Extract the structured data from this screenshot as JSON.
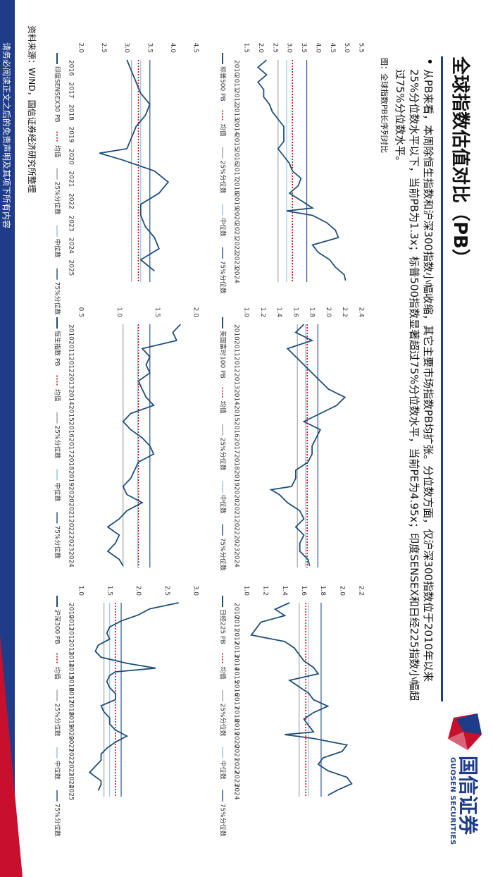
{
  "header": {
    "title": "全球指数估值对比（PB）",
    "bullet": "从PB来看，本周除恒生指数和沪深300指数小幅收缩，其它主要市场指数PB均扩张。分位数方面，仅沪深300指数位于2010年以来25%分位数水平以下，当前PB为1.3x；标普500指数显著超过75%分位数水平，当前PE为4.95x；印度SENSEX和日经225指数小幅超过75%分位数水平。",
    "caption": "图：全球指数PB长序列对比"
  },
  "logo": {
    "cn": "国信证券",
    "en": "GUOSEN SECURITIES"
  },
  "source": "资料来源：WIND，国信证券经济研究所整理",
  "footer": "请务必阅读正文之后的免责声明及其项下所有内容",
  "chart_data": [
    {
      "type": "line",
      "x": [
        2010,
        2010.5,
        2011,
        2011.5,
        2012,
        2012.5,
        2013,
        2013.5,
        2014,
        2014.5,
        2015,
        2015.5,
        2016,
        2016.5,
        2017,
        2017.5,
        2018,
        2018.5,
        2019,
        2019.5,
        2020,
        2020.2,
        2020.5,
        2021,
        2021.5,
        2022,
        2022.5,
        2023,
        2023.5,
        2024,
        2024.5,
        2024.9
      ],
      "series": [
        {
          "name": "标普500 PB",
          "color": "#1f4e79",
          "values": [
            2.2,
            1.9,
            2.2,
            1.9,
            2.1,
            2.1,
            2.3,
            2.4,
            2.6,
            2.8,
            2.8,
            2.8,
            2.6,
            2.8,
            3.0,
            3.1,
            3.4,
            3.3,
            3.0,
            3.4,
            3.8,
            2.9,
            3.8,
            4.3,
            4.6,
            4.7,
            3.8,
            4.0,
            4.4,
            4.6,
            4.9,
            4.95
          ]
        }
      ],
      "reference_lines": [
        {
          "name": "均值",
          "value": 3.1,
          "color": "#c00000",
          "dash": "2,2"
        },
        {
          "name": "25%分位数",
          "value": 2.6,
          "color": "#a6a6a6",
          "dash": ""
        },
        {
          "name": "中位数",
          "value": 2.9,
          "color": "#9dc3e6",
          "dash": ""
        },
        {
          "name": "75%分位数",
          "value": 3.6,
          "color": "#2f5597",
          "dash": ""
        }
      ],
      "xlim": [
        2010,
        2025
      ],
      "xticks": [
        2010,
        2011,
        2012,
        2013,
        2014,
        2015,
        2016,
        2017,
        2018,
        2019,
        2020,
        2021,
        2022,
        2023,
        2024
      ],
      "ylim": [
        1.5,
        5.5
      ],
      "yticks": [
        1.5,
        {
          "value": 2,
          "label": "2.0"
        },
        2.5,
        {
          "value": 3,
          "label": "3.0"
        },
        3.5,
        {
          "value": 4,
          "label": "4.0"
        },
        4.5,
        {
          "value": 5,
          "label": "5.0"
        },
        5.5
      ]
    },
    {
      "type": "line",
      "x": [
        2010,
        2010.5,
        2011,
        2011.5,
        2012,
        2012.5,
        2013,
        2013.5,
        2014,
        2014.5,
        2015,
        2015.5,
        2016,
        2016.5,
        2017,
        2017.5,
        2018,
        2018.5,
        2019,
        2019.5,
        2020,
        2020.2,
        2020.5,
        2021,
        2021.5,
        2022,
        2022.5,
        2023,
        2023.5,
        2024,
        2024.5,
        2024.9
      ],
      "series": [
        {
          "name": "英国富时100 PB",
          "color": "#1f4e79",
          "values": [
            1.7,
            1.6,
            1.8,
            1.5,
            1.6,
            1.7,
            1.8,
            1.9,
            2.0,
            2.2,
            2.1,
            1.9,
            1.7,
            1.9,
            1.85,
            1.8,
            1.8,
            1.75,
            1.6,
            1.6,
            1.55,
            1.3,
            1.4,
            1.5,
            1.65,
            1.7,
            1.6,
            1.7,
            1.65,
            1.65,
            1.75,
            1.77
          ]
        }
      ],
      "reference_lines": [
        {
          "name": "均值",
          "value": 1.74,
          "color": "#c00000",
          "dash": "2,2"
        },
        {
          "name": "25%分位数",
          "value": 1.62,
          "color": "#a6a6a6",
          "dash": ""
        },
        {
          "name": "中位数",
          "value": 1.72,
          "color": "#9dc3e6",
          "dash": ""
        },
        {
          "name": "75%分位数",
          "value": 1.87,
          "color": "#2f5597",
          "dash": ""
        }
      ],
      "xlim": [
        2010,
        2025
      ],
      "xticks": [
        2010,
        2011,
        2012,
        2013,
        2014,
        2015,
        2016,
        2017,
        2018,
        2019,
        2020,
        2021,
        2022,
        2023,
        2024
      ],
      "ylim": [
        1.0,
        2.4
      ],
      "yticks": [
        {
          "value": 1,
          "label": "1.0"
        },
        1.2,
        1.4,
        1.6,
        1.8,
        {
          "value": 2,
          "label": "2.0"
        },
        2.2,
        2.4
      ]
    },
    {
      "type": "line",
      "x": [
        2010,
        2010.5,
        2011,
        2011.5,
        2012,
        2012.5,
        2013,
        2013.5,
        2014,
        2014.5,
        2015,
        2015.5,
        2016,
        2016.5,
        2017,
        2017.5,
        2018,
        2018.5,
        2019,
        2019.5,
        2020,
        2020.2,
        2020.5,
        2021,
        2021.5,
        2022,
        2022.5,
        2023,
        2023.5,
        2024,
        2024.5,
        2024.9
      ],
      "series": [
        {
          "name": "日经225 PB",
          "color": "#1f4e79",
          "values": [
            1.45,
            1.3,
            1.4,
            1.15,
            1.1,
            1.05,
            1.4,
            1.5,
            1.55,
            1.6,
            1.7,
            1.75,
            1.45,
            1.55,
            1.65,
            1.7,
            1.85,
            1.7,
            1.6,
            1.65,
            1.7,
            1.4,
            1.7,
            2.05,
            2.0,
            1.8,
            1.75,
            1.85,
            2.05,
            2.1,
            1.95,
            1.85
          ]
        }
      ],
      "reference_lines": [
        {
          "name": "均值",
          "value": 1.62,
          "color": "#c00000",
          "dash": "2,2"
        },
        {
          "name": "25%分位数",
          "value": 1.55,
          "color": "#a6a6a6",
          "dash": ""
        },
        {
          "name": "中位数",
          "value": 1.65,
          "color": "#9dc3e6",
          "dash": ""
        },
        {
          "name": "75%分位数",
          "value": 1.78,
          "color": "#2f5597",
          "dash": ""
        }
      ],
      "xlim": [
        2010,
        2025
      ],
      "xticks": [
        2010,
        2011,
        2012,
        2013,
        2014,
        2015,
        2016,
        2017,
        2018,
        2019,
        2020,
        2021,
        2022,
        2023,
        2024
      ],
      "ylim": [
        1.0,
        2.2
      ],
      "yticks": [
        {
          "value": 1,
          "label": "1.0"
        },
        1.2,
        1.4,
        1.6,
        1.8,
        {
          "value": 2,
          "label": "2.0"
        },
        2.2
      ]
    },
    {
      "type": "line",
      "x": [
        2016,
        2016.5,
        2017,
        2017.5,
        2018,
        2018.5,
        2019,
        2019.5,
        2020,
        2020.2,
        2020.5,
        2021,
        2021.5,
        2022,
        2022.5,
        2023,
        2023.5,
        2024,
        2024.5,
        2025,
        2025.5
      ],
      "series": [
        {
          "name": "印度SENSEX30 PB",
          "color": "#1f4e79",
          "values": [
            3.0,
            3.1,
            3.2,
            3.3,
            3.5,
            3.4,
            3.2,
            3.1,
            3.0,
            2.4,
            2.9,
            3.6,
            3.9,
            3.7,
            3.3,
            3.3,
            3.4,
            3.6,
            3.7,
            3.3,
            3.6
          ]
        }
      ],
      "reference_lines": [
        {
          "name": "均值",
          "value": 3.25,
          "color": "#c00000",
          "dash": "2,2"
        },
        {
          "name": "25%分位数",
          "value": 3.1,
          "color": "#a6a6a6",
          "dash": ""
        },
        {
          "name": "中位数",
          "value": 3.3,
          "color": "#9dc3e6",
          "dash": ""
        },
        {
          "name": "75%分位数",
          "value": 3.5,
          "color": "#2f5597",
          "dash": ""
        }
      ],
      "xlim": [
        2016,
        2026
      ],
      "xticks": [
        2016,
        2017,
        2018,
        2019,
        2020,
        2021,
        2022,
        2023,
        2024,
        2025
      ],
      "ylim": [
        2.0,
        4.5
      ],
      "yticks": [
        {
          "value": 2,
          "label": "2.0"
        },
        2.5,
        {
          "value": 3,
          "label": "3.0"
        },
        3.5,
        {
          "value": 4,
          "label": "4.0"
        },
        4.5
      ]
    },
    {
      "type": "line",
      "x": [
        2010,
        2010.5,
        2011,
        2011.5,
        2012,
        2012.5,
        2013,
        2013.5,
        2014,
        2014.5,
        2015,
        2015.5,
        2016,
        2016.5,
        2017,
        2017.5,
        2018,
        2018.5,
        2019,
        2019.5,
        2020,
        2020.5,
        2021,
        2021.5,
        2022,
        2022.5,
        2023,
        2023.5,
        2024,
        2024.5,
        2024.9
      ],
      "series": [
        {
          "name": "恒生指数 PB",
          "color": "#1f4e79",
          "values": [
            1.8,
            1.7,
            1.75,
            1.3,
            1.4,
            1.35,
            1.4,
            1.25,
            1.3,
            1.35,
            1.45,
            1.15,
            1.05,
            1.15,
            1.3,
            1.4,
            1.45,
            1.25,
            1.2,
            1.15,
            1.05,
            1.1,
            1.3,
            1.1,
            1.0,
            0.85,
            1.0,
            0.95,
            0.85,
            1.0,
            1.05
          ]
        }
      ],
      "reference_lines": [
        {
          "name": "均值",
          "value": 1.25,
          "color": "#c00000",
          "dash": "2,2"
        },
        {
          "name": "25%分位数",
          "value": 1.05,
          "color": "#a6a6a6",
          "dash": ""
        },
        {
          "name": "中位数",
          "value": 1.24,
          "color": "#9dc3e6",
          "dash": ""
        },
        {
          "name": "75%分位数",
          "value": 1.4,
          "color": "#2f5597",
          "dash": ""
        }
      ],
      "xlim": [
        2010,
        2025
      ],
      "xticks": [
        2010,
        2011,
        2012,
        2013,
        2014,
        2015,
        2016,
        2017,
        2018,
        2019,
        2020,
        2021,
        2022,
        2023,
        2024
      ],
      "ylim": [
        0.5,
        2.0
      ],
      "yticks": [
        0.5,
        {
          "value": 1,
          "label": "1.0"
        },
        1.5,
        {
          "value": 2,
          "label": "2.0"
        }
      ]
    },
    {
      "type": "line",
      "x": [
        2010,
        2010.5,
        2011,
        2011.5,
        2012,
        2012.5,
        2013,
        2013.5,
        2014,
        2014.5,
        2015,
        2015.4,
        2015.7,
        2016,
        2016.5,
        2017,
        2017.5,
        2018,
        2018.5,
        2019,
        2019.5,
        2020,
        2020.5,
        2021,
        2021.5,
        2022,
        2022.5,
        2023,
        2023.5,
        2024,
        2024.7,
        2025,
        2025.5
      ],
      "series": [
        {
          "name": "沪深300 PB",
          "color": "#1f4e79",
          "values": [
            2.7,
            2.2,
            2.0,
            1.7,
            1.5,
            1.45,
            1.5,
            1.3,
            1.25,
            1.35,
            1.8,
            2.3,
            1.6,
            1.5,
            1.45,
            1.5,
            1.6,
            1.6,
            1.35,
            1.4,
            1.5,
            1.5,
            1.6,
            1.8,
            1.6,
            1.45,
            1.35,
            1.35,
            1.25,
            1.15,
            1.35,
            1.35,
            1.3
          ]
        }
      ],
      "reference_lines": [
        {
          "name": "均值",
          "value": 1.6,
          "color": "#c00000",
          "dash": "2,2"
        },
        {
          "name": "25%分位数",
          "value": 1.4,
          "color": "#a6a6a6",
          "dash": ""
        },
        {
          "name": "中位数",
          "value": 1.5,
          "color": "#9dc3e6",
          "dash": ""
        },
        {
          "name": "75%分位数",
          "value": 1.7,
          "color": "#2f5597",
          "dash": ""
        }
      ],
      "xlim": [
        2010,
        2026
      ],
      "xticks": [
        2010,
        2011,
        2012,
        2013,
        2014,
        2015,
        2016,
        2017,
        2018,
        2019,
        2020,
        2021,
        2022,
        2023,
        2024,
        2025
      ],
      "ylim": [
        1.0,
        3.0
      ],
      "yticks": [
        {
          "value": 1,
          "label": "1.0"
        },
        1.5,
        {
          "value": 2,
          "label": "2.0"
        },
        2.5,
        {
          "value": 3,
          "label": "3.0"
        }
      ]
    }
  ]
}
